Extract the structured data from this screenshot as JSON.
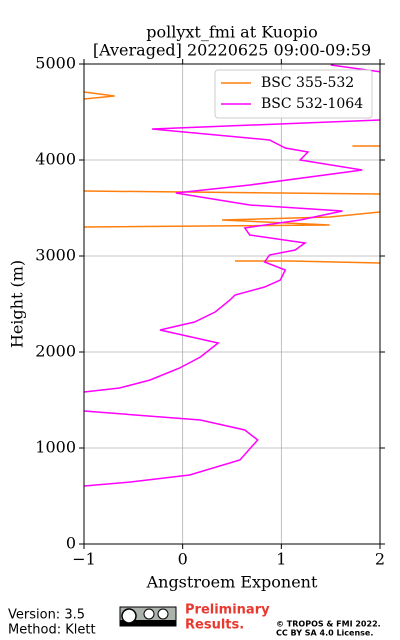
{
  "chart_data": {
    "type": "line",
    "title": "pollyxt_fmi at Kuopio",
    "subtitle": "[Averaged] 20220625 09:00-09:59",
    "x_label": "Angstroem Exponent",
    "y_label": "Height (m)",
    "xlim": [
      -1,
      2
    ],
    "xticks": [
      {
        "value": -1,
        "label": "−1"
      },
      0,
      1,
      2
    ],
    "ylim": [
      0,
      5000
    ],
    "yticks": [
      0,
      1000,
      2000,
      3000,
      4000,
      5000
    ],
    "grid": true,
    "legend": "upper right",
    "series": [
      {
        "name": "BSC 355-532",
        "color": "#ff7f0e",
        "x": [
          -1,
          -0.69,
          -1,
          null,
          1.72,
          2,
          null,
          -1,
          2,
          null,
          2,
          1.49,
          0.4,
          1.49,
          -1,
          null,
          0.53,
          1.09,
          2
        ],
        "y": [
          4708,
          4667,
          4635,
          null,
          4146,
          4146,
          null,
          3677,
          3646,
          null,
          3458,
          3406,
          3375,
          3323,
          3302,
          null,
          2948,
          2948,
          2927
        ]
      },
      {
        "name": "BSC 532-1064",
        "color": "#ff00ff",
        "x": [
          1.5,
          2,
          null,
          2,
          -0.31,
          0.88,
          1.04,
          1.27,
          1.19,
          1.82,
          0.68,
          -0.07,
          0.68,
          1.62,
          1.19,
          0.63,
          0.68,
          1.24,
          1.14,
          0.88,
          0.83,
          1.04,
          0.99,
          0.83,
          0.53,
          0.48,
          0.33,
          0.12,
          -0.23,
          0.36,
          0.18,
          -0.03,
          -0.33,
          -0.64,
          -1,
          null,
          -1,
          0.18,
          0.63,
          0.76,
          0.58,
          0.07,
          -0.53,
          -1
        ],
        "y": [
          4990,
          4920,
          null,
          4417,
          4323,
          4208,
          4125,
          4083,
          4000,
          3896,
          3740,
          3656,
          3531,
          3469,
          3375,
          3292,
          3219,
          3135,
          3062,
          3010,
          2937,
          2854,
          2750,
          2677,
          2594,
          2542,
          2417,
          2312,
          2229,
          2094,
          1948,
          1833,
          1708,
          1625,
          1583,
          null,
          1385,
          1292,
          1188,
          1083,
          875,
          719,
          646,
          604
        ]
      }
    ]
  },
  "footer": {
    "version": "Version: 3.5",
    "method": "Method: Klett",
    "notice": [
      "Preliminary",
      "Results."
    ],
    "copyright": [
      "© TROPOS & FMI 2022.",
      "CC BY SA 4.0 License."
    ]
  }
}
